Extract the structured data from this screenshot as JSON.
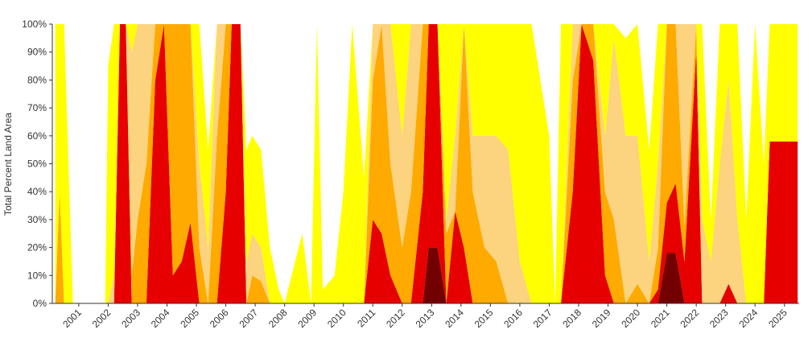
{
  "chart_data": {
    "type": "stacked_area",
    "y_label": "Total Percent Land Area",
    "x": [
      2000.2,
      2000.35,
      2000.5,
      2000.8,
      2001.9,
      2002.0,
      2002.2,
      2002.4,
      2002.6,
      2002.8,
      2003.0,
      2003.3,
      2003.6,
      2003.9,
      2004.2,
      2004.5,
      2004.8,
      2005.1,
      2005.4,
      2005.7,
      2006.0,
      2006.2,
      2006.5,
      2006.7,
      2006.9,
      2007.2,
      2007.5,
      2007.8,
      2008.0,
      2008.6,
      2008.9,
      2009.1,
      2009.3,
      2009.7,
      2010.0,
      2010.3,
      2010.7,
      2011.0,
      2011.3,
      2011.6,
      2012.0,
      2012.3,
      2012.7,
      2012.9,
      2013.2,
      2013.5,
      2013.8,
      2014.1,
      2014.4,
      2014.8,
      2015.2,
      2015.6,
      2016.0,
      2016.4,
      2017.0,
      2017.2,
      2017.4,
      2017.8,
      2018.1,
      2018.5,
      2018.9,
      2019.2,
      2019.6,
      2020.0,
      2020.4,
      2020.7,
      2021.0,
      2021.3,
      2021.6,
      2022.0,
      2022.2,
      2022.5,
      2022.8,
      2023.1,
      2023.4,
      2023.7,
      2024.0,
      2024.3,
      2024.5,
      2025.45
    ],
    "series": [
      {
        "color": "#ffff00",
        "values": [
          100,
          60,
          100,
          0,
          0,
          85,
          90,
          0,
          0,
          10,
          0,
          0,
          0,
          0,
          0,
          0,
          0,
          50,
          35,
          0,
          0,
          0,
          0,
          40,
          35,
          35,
          20,
          5,
          0,
          25,
          0,
          100,
          5,
          10,
          40,
          100,
          45,
          0,
          0,
          0,
          40,
          0,
          0,
          0,
          0,
          70,
          40,
          0,
          40,
          40,
          40,
          45,
          85,
          100,
          60,
          0,
          100,
          0,
          0,
          0,
          40,
          5,
          35,
          40,
          40,
          50,
          0,
          0,
          0,
          0,
          70,
          15,
          50,
          20,
          70,
          30,
          100,
          50,
          42,
          42
        ]
      },
      {
        "color": "#fcd37f",
        "values": [
          0,
          0,
          0,
          0,
          0,
          0,
          10,
          0,
          0,
          80,
          70,
          50,
          0,
          0,
          0,
          0,
          0,
          30,
          20,
          40,
          0,
          0,
          0,
          15,
          15,
          12,
          0,
          0,
          0,
          0,
          0,
          0,
          0,
          0,
          0,
          0,
          0,
          20,
          0,
          50,
          40,
          60,
          0,
          0,
          0,
          5,
          27,
          0,
          20,
          40,
          45,
          55,
          15,
          0,
          0,
          0,
          0,
          20,
          0,
          0,
          20,
          65,
          60,
          53,
          15,
          30,
          0,
          0,
          72,
          0,
          30,
          15,
          50,
          73,
          30,
          0,
          0,
          0,
          0,
          0
        ]
      },
      {
        "color": "#ffaa00",
        "values": [
          0,
          40,
          0,
          0,
          0,
          0,
          0,
          0,
          0,
          10,
          30,
          50,
          20,
          0,
          90,
          85,
          71,
          20,
          0,
          60,
          60,
          0,
          0,
          0,
          10,
          8,
          0,
          0,
          0,
          0,
          0,
          0,
          0,
          0,
          0,
          0,
          0,
          50,
          75,
          40,
          20,
          40,
          60,
          0,
          0,
          25,
          0,
          80,
          40,
          20,
          15,
          0,
          0,
          0,
          0,
          0,
          0,
          40,
          0,
          13,
          30,
          30,
          0,
          7,
          0,
          15,
          64,
          57,
          13,
          10,
          0,
          0,
          0,
          0,
          0,
          0,
          0,
          0,
          0,
          0
        ]
      },
      {
        "color": "#e60000",
        "values": [
          0,
          0,
          0,
          0,
          0,
          0,
          0,
          100,
          100,
          0,
          0,
          0,
          80,
          100,
          10,
          15,
          29,
          0,
          0,
          0,
          40,
          100,
          100,
          0,
          0,
          0,
          0,
          0,
          0,
          0,
          0,
          0,
          0,
          0,
          0,
          0,
          0,
          30,
          25,
          10,
          0,
          0,
          40,
          80,
          80,
          0,
          33,
          20,
          0,
          0,
          0,
          0,
          0,
          0,
          0,
          0,
          0,
          40,
          100,
          87,
          10,
          0,
          0,
          0,
          0,
          5,
          18,
          25,
          15,
          90,
          0,
          0,
          0,
          7,
          0,
          0,
          0,
          0,
          58,
          58
        ]
      },
      {
        "color": "#730000",
        "values": [
          0,
          0,
          0,
          0,
          0,
          0,
          0,
          0,
          0,
          0,
          0,
          0,
          0,
          0,
          0,
          0,
          0,
          0,
          0,
          0,
          0,
          0,
          0,
          0,
          0,
          0,
          0,
          0,
          0,
          0,
          0,
          0,
          0,
          0,
          0,
          0,
          0,
          0,
          0,
          0,
          0,
          0,
          0,
          20,
          20,
          0,
          0,
          0,
          0,
          0,
          0,
          0,
          0,
          0,
          0,
          0,
          0,
          0,
          0,
          0,
          0,
          0,
          0,
          0,
          0,
          0,
          18,
          18,
          0,
          0,
          0,
          0,
          0,
          0,
          0,
          0,
          0,
          0,
          0,
          0
        ]
      }
    ],
    "xlim": [
      2000.1,
      2025.5
    ],
    "xticks": [
      2001,
      2002,
      2003,
      2004,
      2005,
      2006,
      2007,
      2008,
      2009,
      2010,
      2011,
      2012,
      2013,
      2014,
      2015,
      2016,
      2017,
      2018,
      2019,
      2020,
      2021,
      2022,
      2023,
      2024,
      2025
    ],
    "ylim": [
      0,
      100
    ],
    "yticks": [
      {
        "value": 0,
        "label": "0%"
      },
      {
        "value": 10,
        "label": "10%"
      },
      {
        "value": 20,
        "label": "20%"
      },
      {
        "value": 30,
        "label": "30%"
      },
      {
        "value": 40,
        "label": "40%"
      },
      {
        "value": 50,
        "label": "50%"
      },
      {
        "value": 60,
        "label": "60%"
      },
      {
        "value": 70,
        "label": "70%"
      },
      {
        "value": 80,
        "label": "80%"
      },
      {
        "value": 90,
        "label": "90%"
      },
      {
        "value": 100,
        "label": "100%"
      }
    ]
  }
}
